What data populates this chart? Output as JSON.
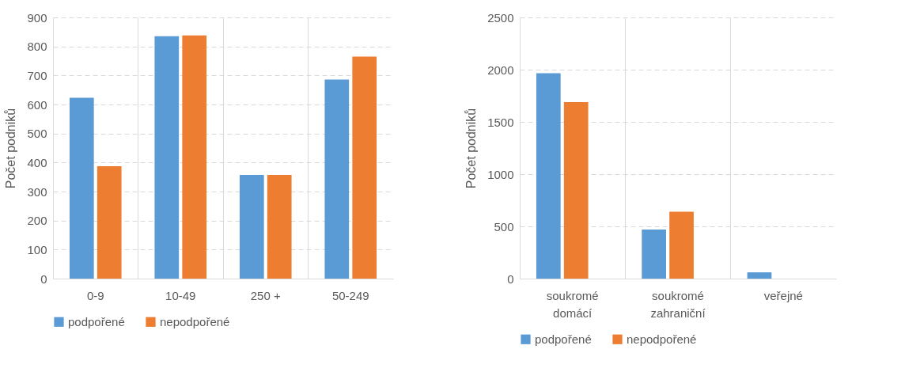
{
  "chart_data": [
    {
      "type": "bar",
      "categories": [
        "0-9",
        "10-49",
        "250 +",
        "50-249"
      ],
      "ylabel": "Počet podniků",
      "ylim": [
        0,
        900
      ],
      "yticks": [
        0,
        100,
        200,
        300,
        400,
        500,
        600,
        700,
        800,
        900
      ],
      "grid": true,
      "legend": "bottom",
      "series": [
        {
          "name": "podpořené",
          "color": "#5b9bd5",
          "values": [
            623,
            835,
            357,
            686
          ]
        },
        {
          "name": "nepodpořené",
          "color": "#ed7d31",
          "values": [
            387,
            838,
            357,
            765
          ]
        }
      ]
    },
    {
      "type": "bar",
      "categories": [
        "soukromé\ndomácí",
        "soukromé\nzahraniční",
        "veřejné"
      ],
      "ylabel": "Počet podniků",
      "ylim": [
        0,
        2500
      ],
      "yticks": [
        0,
        500,
        1000,
        1500,
        2000,
        2500
      ],
      "grid": true,
      "legend": "bottom",
      "series": [
        {
          "name": "podpořené",
          "color": "#5b9bd5",
          "values": [
            1965,
            470,
            60
          ]
        },
        {
          "name": "nepodpořené",
          "color": "#ed7d31",
          "values": [
            1690,
            640,
            null
          ]
        }
      ]
    }
  ]
}
